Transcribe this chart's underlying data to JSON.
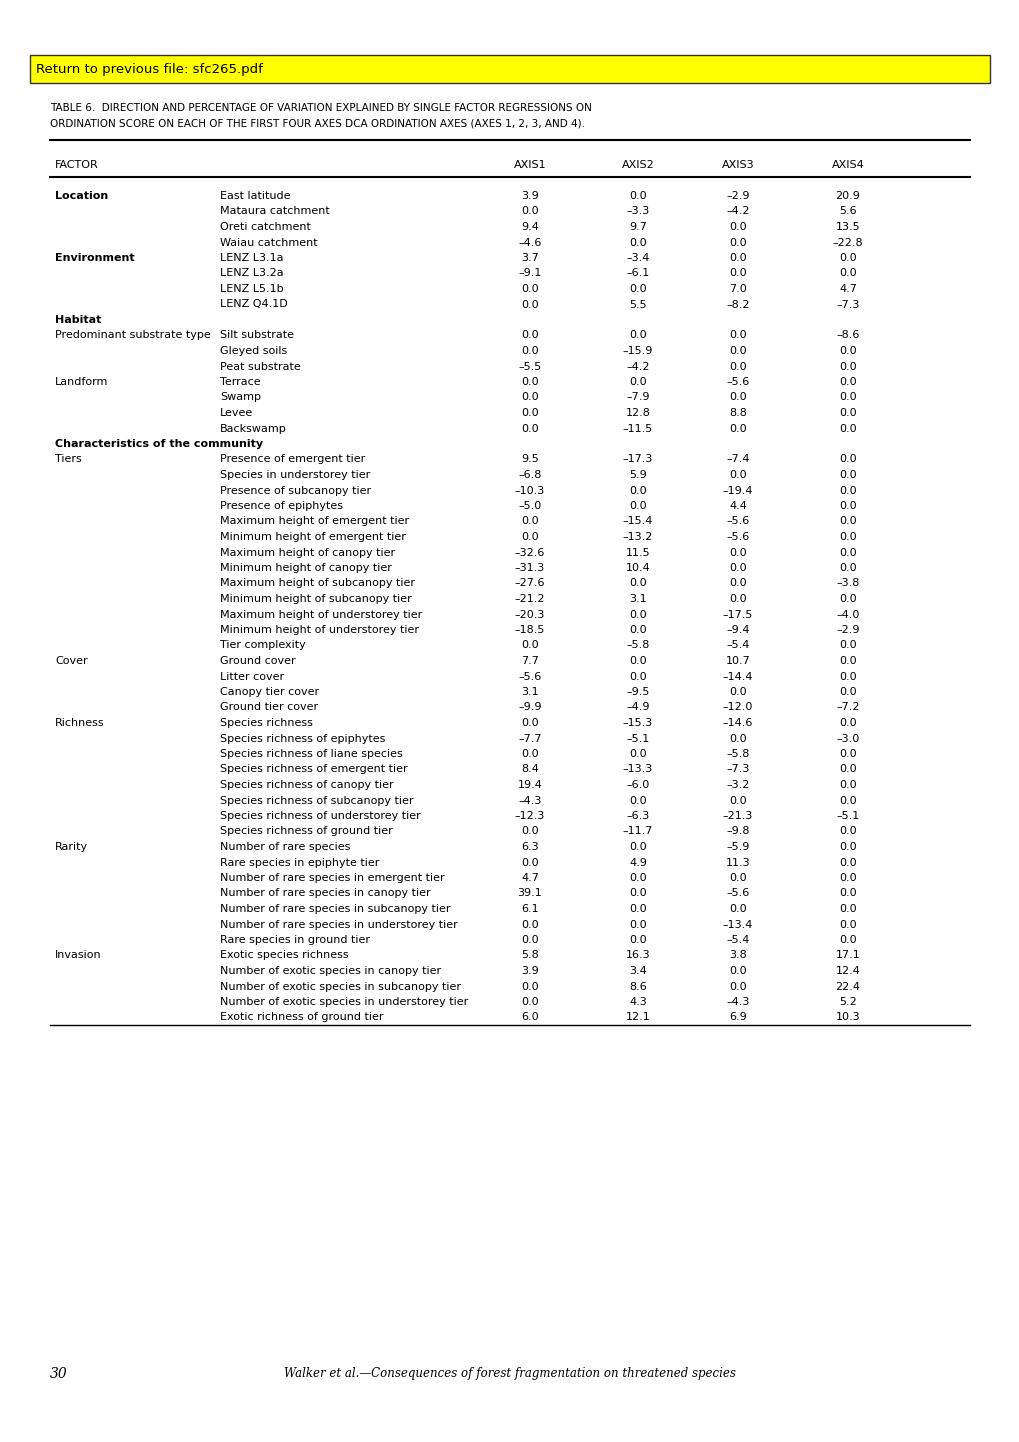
{
  "title_line1": "TABLE 6.  DIRECTION AND PERCENTAGE OF VARIATION EXPLAINED BY SINGLE FACTOR REGRESSIONS ON",
  "title_line2": "ORDINATION SCORE ON EACH OF THE FIRST FOUR AXES DCA ORDINATION AXES (AXES 1, 2, 3, AND 4).",
  "banner_text": "Return to previous file: sfc265.pdf",
  "footer_text": "Walker et al.—Consequences of forest fragmentation on threatened species",
  "page_number": "30",
  "rows": [
    {
      "category": "Location",
      "bold_cat": true,
      "sub": "East latitude",
      "v1": "3.9",
      "v2": "0.0",
      "v3": "–2.9",
      "v4": "20.9",
      "section_header": false
    },
    {
      "category": "",
      "bold_cat": false,
      "sub": "Mataura catchment",
      "v1": "0.0",
      "v2": "–3.3",
      "v3": "–4.2",
      "v4": "5.6",
      "section_header": false
    },
    {
      "category": "",
      "bold_cat": false,
      "sub": "Oreti catchment",
      "v1": "9.4",
      "v2": "9.7",
      "v3": "0.0",
      "v4": "13.5",
      "section_header": false
    },
    {
      "category": "",
      "bold_cat": false,
      "sub": "Waiau catchment",
      "v1": "–4.6",
      "v2": "0.0",
      "v3": "0.0",
      "v4": "–22.8",
      "section_header": false
    },
    {
      "category": "Environment",
      "bold_cat": true,
      "sub": "LENZ L3.1a",
      "v1": "3.7",
      "v2": "–3.4",
      "v3": "0.0",
      "v4": "0.0",
      "section_header": false
    },
    {
      "category": "",
      "bold_cat": false,
      "sub": "LENZ L3.2a",
      "v1": "–9.1",
      "v2": "–6.1",
      "v3": "0.0",
      "v4": "0.0",
      "section_header": false
    },
    {
      "category": "",
      "bold_cat": false,
      "sub": "LENZ L5.1b",
      "v1": "0.0",
      "v2": "0.0",
      "v3": "7.0",
      "v4": "4.7",
      "section_header": false
    },
    {
      "category": "",
      "bold_cat": false,
      "sub": "LENZ Q4.1D",
      "v1": "0.0",
      "v2": "5.5",
      "v3": "–8.2",
      "v4": "–7.3",
      "section_header": false
    },
    {
      "category": "Habitat",
      "bold_cat": true,
      "sub": "",
      "v1": "",
      "v2": "",
      "v3": "",
      "v4": "",
      "section_header": true
    },
    {
      "category": "Predominant substrate type",
      "bold_cat": false,
      "sub": "Silt substrate",
      "v1": "0.0",
      "v2": "0.0",
      "v3": "0.0",
      "v4": "–8.6",
      "section_header": false
    },
    {
      "category": "",
      "bold_cat": false,
      "sub": "Gleyed soils",
      "v1": "0.0",
      "v2": "–15.9",
      "v3": "0.0",
      "v4": "0.0",
      "section_header": false
    },
    {
      "category": "",
      "bold_cat": false,
      "sub": "Peat substrate",
      "v1": "–5.5",
      "v2": "–4.2",
      "v3": "0.0",
      "v4": "0.0",
      "section_header": false
    },
    {
      "category": "Landform",
      "bold_cat": false,
      "sub": "Terrace",
      "v1": "0.0",
      "v2": "0.0",
      "v3": "–5.6",
      "v4": "0.0",
      "section_header": false
    },
    {
      "category": "",
      "bold_cat": false,
      "sub": "Swamp",
      "v1": "0.0",
      "v2": "–7.9",
      "v3": "0.0",
      "v4": "0.0",
      "section_header": false
    },
    {
      "category": "",
      "bold_cat": false,
      "sub": "Levee",
      "v1": "0.0",
      "v2": "12.8",
      "v3": "8.8",
      "v4": "0.0",
      "section_header": false
    },
    {
      "category": "",
      "bold_cat": false,
      "sub": "Backswamp",
      "v1": "0.0",
      "v2": "–11.5",
      "v3": "0.0",
      "v4": "0.0",
      "section_header": false
    },
    {
      "category": "Characteristics of the community",
      "bold_cat": true,
      "sub": "",
      "v1": "",
      "v2": "",
      "v3": "",
      "v4": "",
      "section_header": true
    },
    {
      "category": "Tiers",
      "bold_cat": false,
      "sub": "Presence of emergent tier",
      "v1": "9.5",
      "v2": "–17.3",
      "v3": "–7.4",
      "v4": "0.0",
      "section_header": false
    },
    {
      "category": "",
      "bold_cat": false,
      "sub": "Species in understorey tier",
      "v1": "–6.8",
      "v2": "5.9",
      "v3": "0.0",
      "v4": "0.0",
      "section_header": false
    },
    {
      "category": "",
      "bold_cat": false,
      "sub": "Presence of subcanopy tier",
      "v1": "–10.3",
      "v2": "0.0",
      "v3": "–19.4",
      "v4": "0.0",
      "section_header": false
    },
    {
      "category": "",
      "bold_cat": false,
      "sub": "Presence of epiphytes",
      "v1": "–5.0",
      "v2": "0.0",
      "v3": "4.4",
      "v4": "0.0",
      "section_header": false
    },
    {
      "category": "",
      "bold_cat": false,
      "sub": "Maximum height of emergent tier",
      "v1": "0.0",
      "v2": "–15.4",
      "v3": "–5.6",
      "v4": "0.0",
      "section_header": false
    },
    {
      "category": "",
      "bold_cat": false,
      "sub": "Minimum height of emergent tier",
      "v1": "0.0",
      "v2": "–13.2",
      "v3": "–5.6",
      "v4": "0.0",
      "section_header": false
    },
    {
      "category": "",
      "bold_cat": false,
      "sub": "Maximum height of canopy tier",
      "v1": "–32.6",
      "v2": "11.5",
      "v3": "0.0",
      "v4": "0.0",
      "section_header": false
    },
    {
      "category": "",
      "bold_cat": false,
      "sub": "Minimum height of canopy tier",
      "v1": "–31.3",
      "v2": "10.4",
      "v3": "0.0",
      "v4": "0.0",
      "section_header": false
    },
    {
      "category": "",
      "bold_cat": false,
      "sub": "Maximum height of subcanopy tier",
      "v1": "–27.6",
      "v2": "0.0",
      "v3": "0.0",
      "v4": "–3.8",
      "section_header": false
    },
    {
      "category": "",
      "bold_cat": false,
      "sub": "Minimum height of subcanopy tier",
      "v1": "–21.2",
      "v2": "3.1",
      "v3": "0.0",
      "v4": "0.0",
      "section_header": false
    },
    {
      "category": "",
      "bold_cat": false,
      "sub": "Maximum height of understorey tier",
      "v1": "–20.3",
      "v2": "0.0",
      "v3": "–17.5",
      "v4": "–4.0",
      "section_header": false
    },
    {
      "category": "",
      "bold_cat": false,
      "sub": "Minimum height of understorey tier",
      "v1": "–18.5",
      "v2": "0.0",
      "v3": "–9.4",
      "v4": "–2.9",
      "section_header": false
    },
    {
      "category": "",
      "bold_cat": false,
      "sub": "Tier complexity",
      "v1": "0.0",
      "v2": "–5.8",
      "v3": "–5.4",
      "v4": "0.0",
      "section_header": false
    },
    {
      "category": "Cover",
      "bold_cat": false,
      "sub": "Ground cover",
      "v1": "7.7",
      "v2": "0.0",
      "v3": "10.7",
      "v4": "0.0",
      "section_header": false
    },
    {
      "category": "",
      "bold_cat": false,
      "sub": "Litter cover",
      "v1": "–5.6",
      "v2": "0.0",
      "v3": "–14.4",
      "v4": "0.0",
      "section_header": false
    },
    {
      "category": "",
      "bold_cat": false,
      "sub": "Canopy tier cover",
      "v1": "3.1",
      "v2": "–9.5",
      "v3": "0.0",
      "v4": "0.0",
      "section_header": false
    },
    {
      "category": "",
      "bold_cat": false,
      "sub": "Ground tier cover",
      "v1": "–9.9",
      "v2": "–4.9",
      "v3": "–12.0",
      "v4": "–7.2",
      "section_header": false
    },
    {
      "category": "Richness",
      "bold_cat": false,
      "sub": "Species richness",
      "v1": "0.0",
      "v2": "–15.3",
      "v3": "–14.6",
      "v4": "0.0",
      "section_header": false
    },
    {
      "category": "",
      "bold_cat": false,
      "sub": "Species richness of epiphytes",
      "v1": "–7.7",
      "v2": "–5.1",
      "v3": "0.0",
      "v4": "–3.0",
      "section_header": false
    },
    {
      "category": "",
      "bold_cat": false,
      "sub": "Species richness of liane species",
      "v1": "0.0",
      "v2": "0.0",
      "v3": "–5.8",
      "v4": "0.0",
      "section_header": false
    },
    {
      "category": "",
      "bold_cat": false,
      "sub": "Species richness of emergent tier",
      "v1": "8.4",
      "v2": "–13.3",
      "v3": "–7.3",
      "v4": "0.0",
      "section_header": false
    },
    {
      "category": "",
      "bold_cat": false,
      "sub": "Species richness of canopy tier",
      "v1": "19.4",
      "v2": "–6.0",
      "v3": "–3.2",
      "v4": "0.0",
      "section_header": false
    },
    {
      "category": "",
      "bold_cat": false,
      "sub": "Species richness of subcanopy tier",
      "v1": "–4.3",
      "v2": "0.0",
      "v3": "0.0",
      "v4": "0.0",
      "section_header": false
    },
    {
      "category": "",
      "bold_cat": false,
      "sub": "Species richness of understorey tier",
      "v1": "–12.3",
      "v2": "–6.3",
      "v3": "–21.3",
      "v4": "–5.1",
      "section_header": false
    },
    {
      "category": "",
      "bold_cat": false,
      "sub": "Species richness of ground tier",
      "v1": "0.0",
      "v2": "–11.7",
      "v3": "–9.8",
      "v4": "0.0",
      "section_header": false
    },
    {
      "category": "Rarity",
      "bold_cat": false,
      "sub": "Number of rare species",
      "v1": "6.3",
      "v2": "0.0",
      "v3": "–5.9",
      "v4": "0.0",
      "section_header": false
    },
    {
      "category": "",
      "bold_cat": false,
      "sub": "Rare species in epiphyte tier",
      "v1": "0.0",
      "v2": "4.9",
      "v3": "11.3",
      "v4": "0.0",
      "section_header": false
    },
    {
      "category": "",
      "bold_cat": false,
      "sub": "Number of rare species in emergent tier",
      "v1": "4.7",
      "v2": "0.0",
      "v3": "0.0",
      "v4": "0.0",
      "section_header": false
    },
    {
      "category": "",
      "bold_cat": false,
      "sub": "Number of rare species in canopy tier",
      "v1": "39.1",
      "v2": "0.0",
      "v3": "–5.6",
      "v4": "0.0",
      "section_header": false
    },
    {
      "category": "",
      "bold_cat": false,
      "sub": "Number of rare species in subcanopy tier",
      "v1": "6.1",
      "v2": "0.0",
      "v3": "0.0",
      "v4": "0.0",
      "section_header": false
    },
    {
      "category": "",
      "bold_cat": false,
      "sub": "Number of rare species in understorey tier",
      "v1": "0.0",
      "v2": "0.0",
      "v3": "–13.4",
      "v4": "0.0",
      "section_header": false
    },
    {
      "category": "",
      "bold_cat": false,
      "sub": "Rare species in ground tier",
      "v1": "0.0",
      "v2": "0.0",
      "v3": "–5.4",
      "v4": "0.0",
      "section_header": false
    },
    {
      "category": "Invasion",
      "bold_cat": false,
      "sub": "Exotic species richness",
      "v1": "5.8",
      "v2": "16.3",
      "v3": "3.8",
      "v4": "17.1",
      "section_header": false
    },
    {
      "category": "",
      "bold_cat": false,
      "sub": "Number of exotic species in canopy tier",
      "v1": "3.9",
      "v2": "3.4",
      "v3": "0.0",
      "v4": "12.4",
      "section_header": false
    },
    {
      "category": "",
      "bold_cat": false,
      "sub": "Number of exotic species in subcanopy tier",
      "v1": "0.0",
      "v2": "8.6",
      "v3": "0.0",
      "v4": "22.4",
      "section_header": false
    },
    {
      "category": "",
      "bold_cat": false,
      "sub": "Number of exotic species in understorey tier",
      "v1": "0.0",
      "v2": "4.3",
      "v3": "–4.3",
      "v4": "5.2",
      "section_header": false
    },
    {
      "category": "",
      "bold_cat": false,
      "sub": "Exotic richness of ground tier",
      "v1": "6.0",
      "v2": "12.1",
      "v3": "6.9",
      "v4": "10.3",
      "section_header": false
    }
  ]
}
